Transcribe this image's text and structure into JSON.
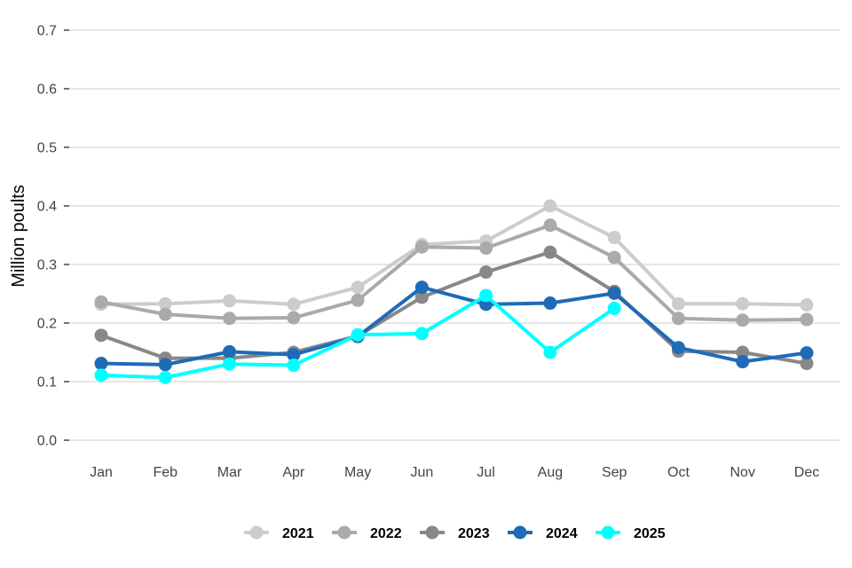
{
  "chart_data": {
    "type": "line",
    "title": "",
    "xlabel": "",
    "ylabel": "Million poults",
    "ylim": [
      0,
      0.7
    ],
    "yticks": [
      "0.0",
      "0.1",
      "0.2",
      "0.3",
      "0.4",
      "0.5",
      "0.6",
      "0.7"
    ],
    "categories": [
      "Jan",
      "Feb",
      "Mar",
      "Apr",
      "May",
      "Jun",
      "Jul",
      "Aug",
      "Sep",
      "Oct",
      "Nov",
      "Dec"
    ],
    "grid": "horizontal",
    "legend_position": "bottom",
    "series": [
      {
        "name": "2021",
        "color": "#cccccc",
        "values": [
          0.232,
          0.233,
          0.238,
          0.232,
          0.261,
          0.334,
          0.34,
          0.4,
          0.346,
          0.233,
          0.233,
          0.231
        ]
      },
      {
        "name": "2022",
        "color": "#aaaaaa",
        "values": [
          0.236,
          0.215,
          0.208,
          0.209,
          0.239,
          0.33,
          0.328,
          0.367,
          0.312,
          0.208,
          0.205,
          0.206
        ]
      },
      {
        "name": "2023",
        "color": "#888888",
        "values": [
          0.179,
          0.14,
          0.14,
          0.15,
          0.178,
          0.244,
          0.287,
          0.321,
          0.254,
          0.152,
          0.15,
          0.131
        ]
      },
      {
        "name": "2024",
        "color": "#1e6bb8",
        "values": [
          0.131,
          0.129,
          0.151,
          0.146,
          0.177,
          0.261,
          0.232,
          0.234,
          0.251,
          0.158,
          0.134,
          0.149
        ]
      },
      {
        "name": "2025",
        "color": "#00ffff",
        "values": [
          0.111,
          0.107,
          0.13,
          0.128,
          0.18,
          0.182,
          0.247,
          0.15,
          0.225,
          null,
          null,
          null
        ]
      }
    ]
  }
}
